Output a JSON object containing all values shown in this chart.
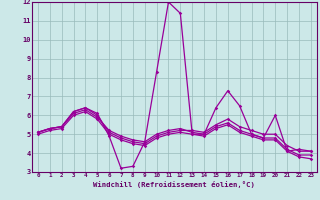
{
  "xlabel": "Windchill (Refroidissement éolien,°C)",
  "xlim": [
    -0.5,
    23.5
  ],
  "ylim": [
    3,
    12
  ],
  "yticks": [
    3,
    4,
    5,
    6,
    7,
    8,
    9,
    10,
    11,
    12
  ],
  "xticks": [
    0,
    1,
    2,
    3,
    4,
    5,
    6,
    7,
    8,
    9,
    10,
    11,
    12,
    13,
    14,
    15,
    16,
    17,
    18,
    19,
    20,
    21,
    22,
    23
  ],
  "background_color": "#cce8e8",
  "grid_color": "#99bbbb",
  "line_color": "#990099",
  "spine_color": "#660066",
  "tick_color": "#660066",
  "label_color": "#660066",
  "lines": [
    [
      5.1,
      5.3,
      5.4,
      6.2,
      6.4,
      6.1,
      4.9,
      3.2,
      3.3,
      4.6,
      8.3,
      12.0,
      11.4,
      5.0,
      5.0,
      6.4,
      7.3,
      6.5,
      5.0,
      4.8,
      6.0,
      4.1,
      4.2,
      4.1
    ],
    [
      5.1,
      5.3,
      5.4,
      6.2,
      6.4,
      6.0,
      5.1,
      4.8,
      4.6,
      4.5,
      4.9,
      5.1,
      5.2,
      5.2,
      5.1,
      5.5,
      5.8,
      5.4,
      5.2,
      5.0,
      5.0,
      4.4,
      4.1,
      4.1
    ],
    [
      5.1,
      5.3,
      5.4,
      6.1,
      6.3,
      5.9,
      5.2,
      4.9,
      4.7,
      4.6,
      5.0,
      5.2,
      5.3,
      5.1,
      5.0,
      5.4,
      5.6,
      5.2,
      5.0,
      4.8,
      4.8,
      4.2,
      3.9,
      3.9
    ],
    [
      5.0,
      5.2,
      5.3,
      6.0,
      6.2,
      5.8,
      5.0,
      4.7,
      4.5,
      4.4,
      4.8,
      5.0,
      5.1,
      5.0,
      4.9,
      5.3,
      5.5,
      5.1,
      4.9,
      4.7,
      4.7,
      4.1,
      3.8,
      3.7
    ]
  ]
}
